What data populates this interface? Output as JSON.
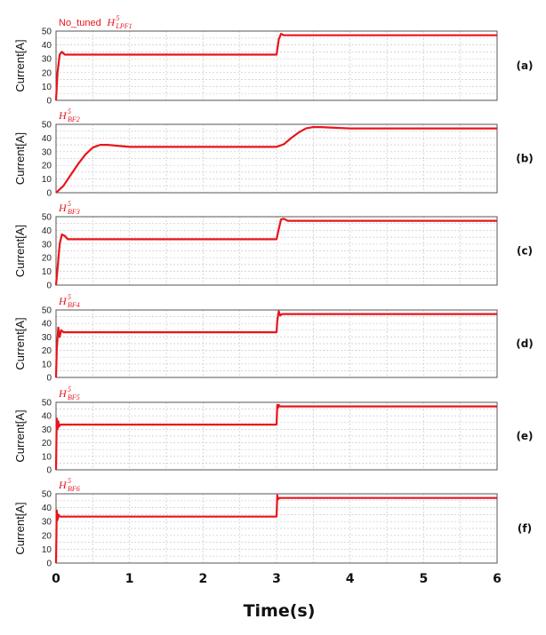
{
  "figure": {
    "xlabel": "Time(s)",
    "xticks": [
      "0",
      "1",
      "2",
      "3",
      "4",
      "5",
      "6"
    ],
    "colors": {
      "trace": "#e8141b",
      "grid": "#c8c8c8",
      "frame": "#555555"
    }
  },
  "chart_data": [
    {
      "type": "line",
      "panel_label": "(a)",
      "title_prefix": "No_tuned",
      "title_main": "H",
      "title_sup": "5",
      "title_sub": "LPF1",
      "ylabel": "Current[A]",
      "xlim": [
        0,
        6
      ],
      "ylim": [
        0,
        50
      ],
      "yticks": [
        0,
        5,
        10,
        15,
        20,
        25,
        30,
        35,
        40,
        45,
        50
      ],
      "grid": true,
      "series": [
        {
          "x": [
            0,
            0.02,
            0.05,
            0.08,
            0.12,
            3.0,
            3.03,
            3.06,
            3.1,
            6.0
          ],
          "y": [
            0,
            20,
            33,
            35,
            33,
            33,
            44,
            48,
            47,
            47
          ]
        }
      ]
    },
    {
      "type": "line",
      "panel_label": "(b)",
      "title_prefix": "",
      "title_main": "H",
      "title_sup": "5",
      "title_sub": "BF2",
      "ylabel": "Current[A]",
      "xlim": [
        0,
        6
      ],
      "ylim": [
        0,
        50
      ],
      "yticks": [
        0,
        5,
        10,
        15,
        20,
        25,
        30,
        35,
        40,
        45,
        50
      ],
      "grid": true,
      "series": [
        {
          "x": [
            0,
            0.1,
            0.2,
            0.3,
            0.4,
            0.5,
            0.6,
            0.7,
            0.8,
            0.9,
            1.0,
            1.2,
            3.0,
            3.1,
            3.2,
            3.3,
            3.4,
            3.5,
            3.6,
            3.8,
            4.0,
            6.0
          ],
          "y": [
            0,
            5,
            13,
            21,
            28,
            33,
            35,
            35,
            34.5,
            34,
            33.5,
            33.5,
            33.5,
            35.5,
            40,
            44,
            47,
            48,
            48,
            47.5,
            47,
            47
          ]
        }
      ]
    },
    {
      "type": "line",
      "panel_label": "(c)",
      "title_prefix": "",
      "title_main": "H",
      "title_sup": "5",
      "title_sub": "BF3",
      "ylabel": "Current[A]",
      "xlim": [
        0,
        6
      ],
      "ylim": [
        0,
        50
      ],
      "yticks": [
        0,
        5,
        10,
        15,
        20,
        25,
        30,
        35,
        40,
        45,
        50
      ],
      "grid": true,
      "series": [
        {
          "x": [
            0,
            0.02,
            0.05,
            0.08,
            0.12,
            0.16,
            3.0,
            3.03,
            3.06,
            3.1,
            3.15,
            6.0
          ],
          "y": [
            0,
            12,
            30,
            37,
            36,
            33.5,
            33.5,
            41,
            48,
            48.5,
            47,
            47
          ]
        }
      ]
    },
    {
      "type": "line",
      "panel_label": "(d)",
      "title_prefix": "",
      "title_main": "H",
      "title_sup": "5",
      "title_sub": "BF4",
      "ylabel": "Current[A]",
      "xlim": [
        0,
        6
      ],
      "ylim": [
        0,
        50
      ],
      "yticks": [
        0,
        5,
        10,
        15,
        20,
        25,
        30,
        35,
        40,
        45,
        50
      ],
      "grid": true,
      "series": [
        {
          "x": [
            0,
            0.01,
            0.03,
            0.05,
            0.07,
            0.1,
            3.0,
            3.01,
            3.03,
            3.05,
            3.08,
            6.0
          ],
          "y": [
            0,
            20,
            37,
            30,
            35,
            33.5,
            33.5,
            42,
            49,
            46,
            47,
            47
          ]
        }
      ]
    },
    {
      "type": "line",
      "panel_label": "(e)",
      "title_prefix": "",
      "title_main": "H",
      "title_sup": "5",
      "title_sub": "BF5",
      "ylabel": "Current[A]",
      "xlim": [
        0,
        6
      ],
      "ylim": [
        0,
        50
      ],
      "yticks": [
        0,
        5,
        10,
        15,
        20,
        25,
        30,
        35,
        40,
        45,
        50
      ],
      "grid": true,
      "series": [
        {
          "x": [
            0,
            0.01,
            0.02,
            0.03,
            0.04,
            0.06,
            3.0,
            3.01,
            3.02,
            3.03,
            3.05,
            6.0
          ],
          "y": [
            0,
            38,
            30,
            36,
            32,
            33.5,
            33.5,
            48,
            46,
            48,
            47,
            47
          ]
        }
      ]
    },
    {
      "type": "line",
      "panel_label": "(f)",
      "title_prefix": "",
      "title_main": "H",
      "title_sup": "5",
      "title_sub": "BF6",
      "ylabel": "Current[A]",
      "xlim": [
        0,
        6
      ],
      "ylim": [
        0,
        50
      ],
      "yticks": [
        0,
        5,
        10,
        15,
        20,
        25,
        30,
        35,
        40,
        45,
        50
      ],
      "grid": true,
      "series": [
        {
          "x": [
            0,
            0.01,
            0.02,
            0.03,
            0.05,
            3.0,
            3.01,
            3.02,
            3.04,
            6.0
          ],
          "y": [
            0,
            38,
            31,
            35,
            33.5,
            33.5,
            49,
            46,
            47,
            47
          ]
        }
      ]
    }
  ]
}
